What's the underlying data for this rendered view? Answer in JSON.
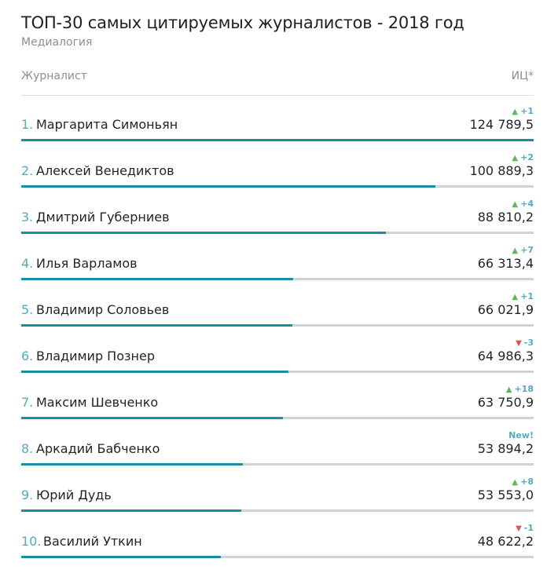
{
  "header": {
    "title": "ТОП-30 самых цитируемых журналистов - 2018 год",
    "source": "Медиалогия",
    "col_name": "Журналист",
    "col_value": "ИЦ*"
  },
  "colors": {
    "bar": "#1a8ea3",
    "track": "#cfd3d6",
    "rank": "#56a9bf",
    "up": "#5cb85c",
    "down": "#e0554d"
  },
  "chart_data": {
    "type": "bar",
    "title": "ТОП-30 самых цитируемых журналистов - 2018 год",
    "orientation": "horizontal",
    "value_label": "ИЦ*",
    "xlim": [
      0,
      124789.5
    ],
    "rows": [
      {
        "rank": "1.",
        "name": "Маргарита Симоньян",
        "value": 124789.5,
        "value_text": "124 789,5",
        "change": "+1",
        "dir": "up"
      },
      {
        "rank": "2.",
        "name": "Алексей Венедиктов",
        "value": 100889.3,
        "value_text": "100 889,3",
        "change": "+2",
        "dir": "up"
      },
      {
        "rank": "3.",
        "name": "Дмитрий Губерниев",
        "value": 88810.2,
        "value_text": "88 810,2",
        "change": "+4",
        "dir": "up"
      },
      {
        "rank": "4.",
        "name": "Илья Варламов",
        "value": 66313.4,
        "value_text": "66 313,4",
        "change": "+7",
        "dir": "up"
      },
      {
        "rank": "5.",
        "name": "Владимир Соловьев",
        "value": 66021.9,
        "value_text": "66 021,9",
        "change": "+1",
        "dir": "up"
      },
      {
        "rank": "6.",
        "name": "Владимир Познер",
        "value": 64986.3,
        "value_text": "64 986,3",
        "change": "-3",
        "dir": "down"
      },
      {
        "rank": "7.",
        "name": "Максим Шевченко",
        "value": 63750.9,
        "value_text": "63 750,9",
        "change": "+18",
        "dir": "up"
      },
      {
        "rank": "8.",
        "name": "Аркадий Бабченко",
        "value": 53894.2,
        "value_text": "53 894,2",
        "change": "New!",
        "dir": "new"
      },
      {
        "rank": "9.",
        "name": "Юрий Дудь",
        "value": 53553.0,
        "value_text": "53 553,0",
        "change": "+8",
        "dir": "up"
      },
      {
        "rank": "10.",
        "name": "Василий Уткин",
        "value": 48622.2,
        "value_text": "48 622,2",
        "change": "-1",
        "dir": "down"
      }
    ]
  }
}
